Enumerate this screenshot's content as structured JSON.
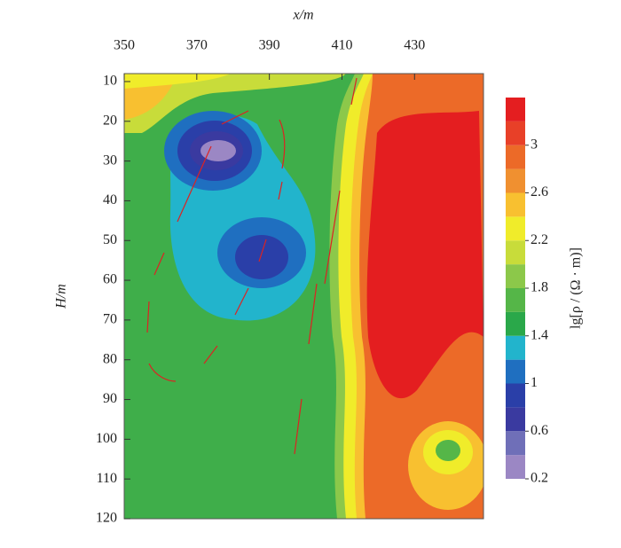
{
  "chart_data": {
    "type": "contour",
    "x_label": "x/m",
    "y_label": "H/m",
    "xlim": [
      350,
      449
    ],
    "xticks": [
      350,
      370,
      390,
      410,
      430
    ],
    "ylim": [
      8,
      120
    ],
    "yticks": [
      10,
      20,
      30,
      40,
      50,
      60,
      70,
      80,
      90,
      100,
      110,
      120
    ],
    "colorbar": {
      "label": "lg[ρ / (Ω · m)]",
      "levels": [
        0.2,
        0.4,
        0.6,
        0.8,
        1.0,
        1.2,
        1.4,
        1.6,
        1.8,
        2.0,
        2.2,
        2.4,
        2.6,
        2.8,
        3.0,
        3.2,
        3.4
      ],
      "colors": [
        "#9b87c4",
        "#6f6fb8",
        "#3a3aa0",
        "#2a3fa8",
        "#1f6fc0",
        "#22b4cc",
        "#2aa84a",
        "#55b648",
        "#8cc84a",
        "#c8dc3a",
        "#f0ec2a",
        "#f8c030",
        "#f09030",
        "#ec6a28",
        "#e84028",
        "#e41e20"
      ],
      "ticks": [
        0.2,
        0.6,
        1,
        1.4,
        1.8,
        2.2,
        2.6,
        3
      ]
    }
  }
}
